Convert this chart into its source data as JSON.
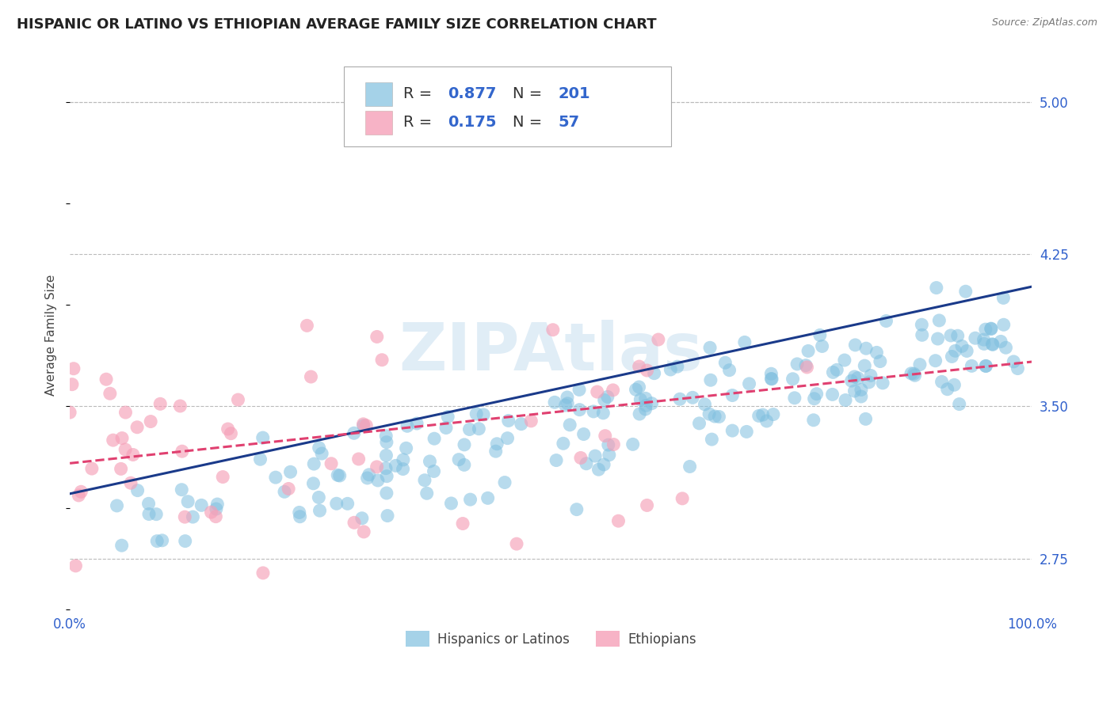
{
  "title": "HISPANIC OR LATINO VS ETHIOPIAN AVERAGE FAMILY SIZE CORRELATION CHART",
  "source_text": "Source: ZipAtlas.com",
  "ylabel": "Average Family Size",
  "xlim": [
    0.0,
    1.0
  ],
  "ylim": [
    2.5,
    5.2
  ],
  "yticks": [
    2.75,
    3.5,
    4.25,
    5.0
  ],
  "xticks": [
    0.0,
    1.0
  ],
  "xtick_labels": [
    "0.0%",
    "100.0%"
  ],
  "background_color": "#ffffff",
  "grid_color": "#bbbbbb",
  "watermark": "ZIPAtlas",
  "watermark_color": "#c8dff0",
  "blue_dot_color": "#7fbfdf",
  "pink_dot_color": "#f5a0b8",
  "blue_line_color": "#1a3a8a",
  "pink_line_color": "#e04070",
  "blue_R": 0.877,
  "blue_N": 201,
  "pink_R": 0.175,
  "pink_N": 57,
  "title_fontsize": 13,
  "axis_label_fontsize": 11,
  "tick_fontsize": 12,
  "legend_fontsize": 14,
  "right_tick_color": "#3060cc",
  "legend_text_color": "#333333",
  "legend_value_color": "#3366cc"
}
